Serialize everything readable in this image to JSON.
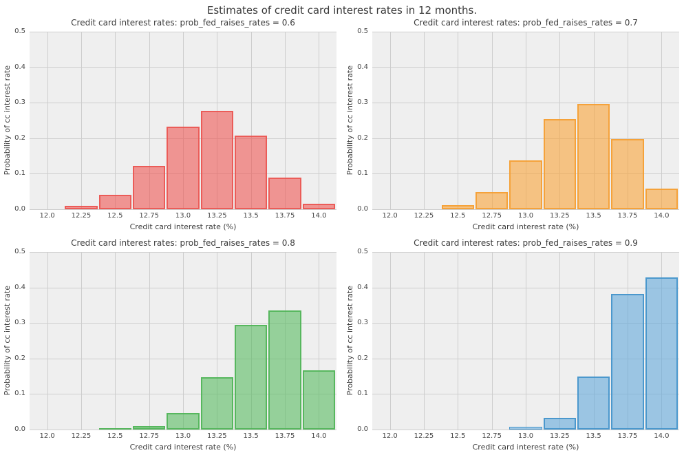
{
  "figure": {
    "title": "Estimates of credit card interest rates in 12 months.",
    "background_color": "#ffffff",
    "plot_background_color": "#efefef",
    "grid_color": "#cdcdcd",
    "text_color": "#3a3a3a"
  },
  "chart_data": [
    {
      "type": "bar",
      "subtype": "histogram",
      "title": "Credit card interest rates: prob_fed_raises_rates = 0.6",
      "prob_fed_raises_rates": 0.6,
      "xlabel": "Credit card interest rate (%)",
      "ylabel": "Probability of cc interest rate",
      "bin_centers": [
        12.25,
        12.5,
        12.75,
        13.0,
        13.25,
        13.5,
        13.75,
        14.0
      ],
      "bin_width": 0.25,
      "values": [
        0.01,
        0.041,
        0.123,
        0.232,
        0.278,
        0.208,
        0.09,
        0.016
      ],
      "fill_color": "rgba(238,87,83,0.6)",
      "edge_color": "rgba(234,82,78,0.85)",
      "xlim": [
        11.87,
        14.13
      ],
      "ylim": [
        0,
        0.5
      ],
      "xticks": [
        "12.0",
        "12.25",
        "12.5",
        "12.75",
        "13.0",
        "13.25",
        "13.5",
        "13.75",
        "14.0"
      ],
      "yticks": [
        "0.0",
        "0.1",
        "0.2",
        "0.3",
        "0.4",
        "0.5"
      ],
      "grid": true,
      "legend": false
    },
    {
      "type": "bar",
      "subtype": "histogram",
      "title": "Credit card interest rates: prob_fed_raises_rates = 0.7",
      "prob_fed_raises_rates": 0.7,
      "xlabel": "Credit card interest rate (%)",
      "ylabel": "Probability of cc interest rate",
      "bin_centers": [
        12.5,
        12.75,
        13.0,
        13.25,
        13.5,
        13.75,
        14.0
      ],
      "bin_width": 0.25,
      "values": [
        0.012,
        0.048,
        0.137,
        0.253,
        0.296,
        0.197,
        0.058
      ],
      "fill_color": "rgba(249,163,56,0.6)",
      "edge_color": "rgba(245,158,50,0.9)",
      "xlim": [
        11.87,
        14.13
      ],
      "ylim": [
        0,
        0.5
      ],
      "xticks": [
        "12.0",
        "12.25",
        "12.5",
        "12.75",
        "13.0",
        "13.25",
        "13.5",
        "13.75",
        "14.0"
      ],
      "yticks": [
        "0.0",
        "0.1",
        "0.2",
        "0.3",
        "0.4",
        "0.5"
      ],
      "grid": true,
      "legend": false
    },
    {
      "type": "bar",
      "subtype": "histogram",
      "title": "Credit card interest rates: prob_fed_raises_rates = 0.8",
      "prob_fed_raises_rates": 0.8,
      "xlabel": "Credit card interest rate (%)",
      "ylabel": "Probability of cc interest rate",
      "bin_centers": [
        12.5,
        12.75,
        13.0,
        13.25,
        13.5,
        13.75,
        14.0
      ],
      "bin_width": 0.25,
      "values": [
        0.003,
        0.01,
        0.046,
        0.147,
        0.294,
        0.336,
        0.167
      ],
      "fill_color": "rgba(88,186,96,0.6)",
      "edge_color": "rgba(80,180,88,0.9)",
      "xlim": [
        11.87,
        14.13
      ],
      "ylim": [
        0,
        0.5
      ],
      "xticks": [
        "12.0",
        "12.25",
        "12.5",
        "12.75",
        "13.0",
        "13.25",
        "13.5",
        "13.75",
        "14.0"
      ],
      "yticks": [
        "0.0",
        "0.1",
        "0.2",
        "0.3",
        "0.4",
        "0.5"
      ],
      "grid": true,
      "legend": false
    },
    {
      "type": "bar",
      "subtype": "histogram",
      "title": "Credit card interest rates: prob_fed_raises_rates = 0.9",
      "prob_fed_raises_rates": 0.9,
      "xlabel": "Credit card interest rate (%)",
      "ylabel": "Probability of cc interest rate",
      "bin_centers": [
        13.0,
        13.25,
        13.5,
        13.75,
        14.0
      ],
      "bin_width": 0.25,
      "values": [
        0.008,
        0.033,
        0.149,
        0.382,
        0.428
      ],
      "fill_color": "rgba(99,169,219,0.6)",
      "edge_color": "rgba(66,146,202,0.9)",
      "xlim": [
        11.87,
        14.13
      ],
      "ylim": [
        0,
        0.5
      ],
      "xticks": [
        "12.0",
        "12.25",
        "12.5",
        "12.75",
        "13.0",
        "13.25",
        "13.5",
        "13.75",
        "14.0"
      ],
      "yticks": [
        "0.0",
        "0.1",
        "0.2",
        "0.3",
        "0.4",
        "0.5"
      ],
      "grid": true,
      "legend": false
    }
  ]
}
